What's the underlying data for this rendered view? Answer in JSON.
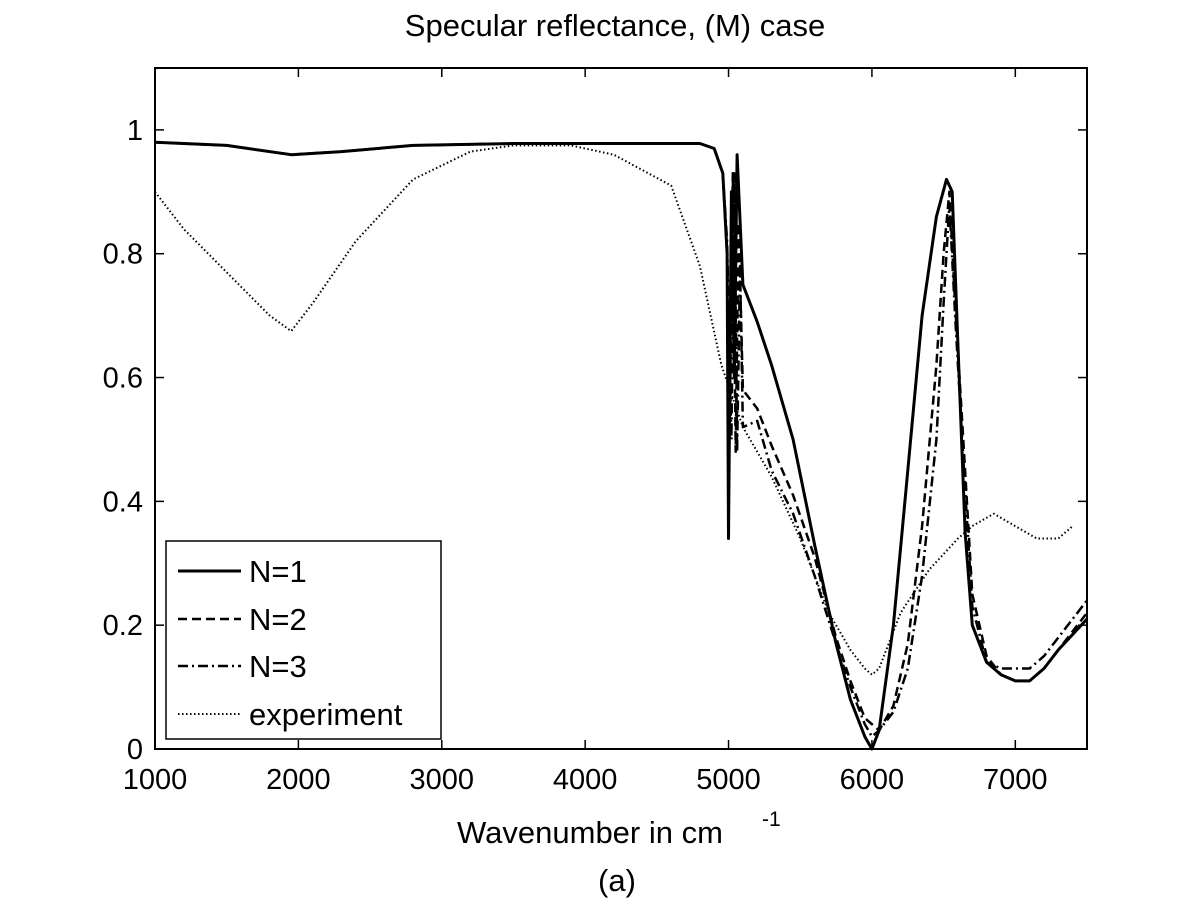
{
  "chart_data": {
    "type": "line",
    "title": "Specular reflectance, (M) case",
    "xlabel": "Wavenumber in cm",
    "xlabel_superscript": "-1",
    "caption": "(a)",
    "xlim": [
      1000,
      7500
    ],
    "ylim": [
      0,
      1.1
    ],
    "xticks": [
      1000,
      2000,
      3000,
      4000,
      5000,
      6000,
      7000
    ],
    "xtick_labels": [
      "1000",
      "2000",
      "3000",
      "4000",
      "5000",
      "6000",
      "7000"
    ],
    "yticks": [
      0,
      0.2,
      0.4,
      0.6,
      0.8,
      1
    ],
    "ytick_labels": [
      "0",
      "0.2",
      "0.4",
      "0.6",
      "0.8",
      "1"
    ],
    "grid": false,
    "legend_position": "bottom-left",
    "series": [
      {
        "name": "N=1",
        "style": "solid",
        "x": [
          1000,
          1500,
          1950,
          2300,
          2800,
          3500,
          4200,
          4800,
          4900,
          4960,
          4990,
          5000,
          5020,
          5040,
          5060,
          5100,
          5200,
          5300,
          5450,
          5600,
          5750,
          5850,
          5950,
          6000,
          6050,
          6150,
          6250,
          6350,
          6450,
          6520,
          6560,
          6600,
          6650,
          6700,
          6800,
          6900,
          7000,
          7100,
          7200,
          7300,
          7500
        ],
        "y": [
          0.98,
          0.975,
          0.96,
          0.965,
          0.975,
          0.978,
          0.978,
          0.978,
          0.97,
          0.93,
          0.8,
          0.34,
          0.9,
          0.6,
          0.96,
          0.75,
          0.69,
          0.62,
          0.5,
          0.33,
          0.17,
          0.08,
          0.02,
          0.0,
          0.03,
          0.2,
          0.45,
          0.7,
          0.86,
          0.92,
          0.9,
          0.65,
          0.35,
          0.2,
          0.14,
          0.12,
          0.11,
          0.11,
          0.13,
          0.16,
          0.21
        ]
      },
      {
        "name": "N=2",
        "style": "dashed",
        "x": [
          1000,
          1500,
          1950,
          2300,
          2800,
          3500,
          4200,
          4800,
          4900,
          4960,
          4990,
          5010,
          5030,
          5050,
          5070,
          5100,
          5200,
          5300,
          5450,
          5600,
          5750,
          5850,
          5950,
          6000,
          6050,
          6150,
          6250,
          6350,
          6450,
          6500,
          6540,
          6580,
          6650,
          6700,
          6800,
          6900,
          7000,
          7100,
          7200,
          7300,
          7500
        ],
        "y": [
          0.98,
          0.975,
          0.96,
          0.965,
          0.975,
          0.978,
          0.978,
          0.978,
          0.97,
          0.93,
          0.8,
          0.55,
          0.93,
          0.48,
          0.85,
          0.58,
          0.55,
          0.49,
          0.41,
          0.31,
          0.18,
          0.11,
          0.05,
          0.04,
          0.03,
          0.07,
          0.17,
          0.36,
          0.62,
          0.8,
          0.9,
          0.72,
          0.45,
          0.25,
          0.15,
          0.12,
          0.11,
          0.11,
          0.13,
          0.16,
          0.22
        ]
      },
      {
        "name": "N=3",
        "style": "dashdot",
        "x": [
          1000,
          1500,
          1950,
          2300,
          2800,
          3500,
          4200,
          4800,
          4900,
          4960,
          4990,
          5020,
          5040,
          5060,
          5080,
          5100,
          5200,
          5300,
          5450,
          5600,
          5750,
          5850,
          5950,
          6000,
          6050,
          6150,
          6250,
          6350,
          6450,
          6500,
          6540,
          6580,
          6650,
          6700,
          6800,
          6900,
          7000,
          7100,
          7200,
          7300,
          7500
        ],
        "y": [
          0.98,
          0.975,
          0.96,
          0.965,
          0.975,
          0.978,
          0.978,
          0.978,
          0.97,
          0.93,
          0.82,
          0.5,
          0.93,
          0.48,
          0.78,
          0.52,
          0.53,
          0.45,
          0.38,
          0.28,
          0.17,
          0.1,
          0.04,
          0.02,
          0.03,
          0.06,
          0.13,
          0.28,
          0.5,
          0.72,
          0.88,
          0.7,
          0.42,
          0.23,
          0.14,
          0.13,
          0.13,
          0.13,
          0.15,
          0.18,
          0.24
        ]
      },
      {
        "name": "experiment",
        "style": "dotted",
        "x": [
          1000,
          1200,
          1500,
          1800,
          1950,
          2100,
          2400,
          2800,
          3200,
          3500,
          3900,
          4200,
          4600,
          4800,
          4950,
          5100,
          5300,
          5500,
          5700,
          5850,
          5950,
          6000,
          6050,
          6200,
          6400,
          6600,
          6700,
          6850,
          7000,
          7150,
          7300,
          7400
        ],
        "y": [
          0.9,
          0.84,
          0.77,
          0.7,
          0.675,
          0.72,
          0.82,
          0.92,
          0.965,
          0.975,
          0.975,
          0.96,
          0.91,
          0.78,
          0.62,
          0.52,
          0.44,
          0.34,
          0.22,
          0.16,
          0.13,
          0.12,
          0.13,
          0.22,
          0.29,
          0.34,
          0.36,
          0.38,
          0.36,
          0.34,
          0.34,
          0.36
        ]
      }
    ]
  }
}
